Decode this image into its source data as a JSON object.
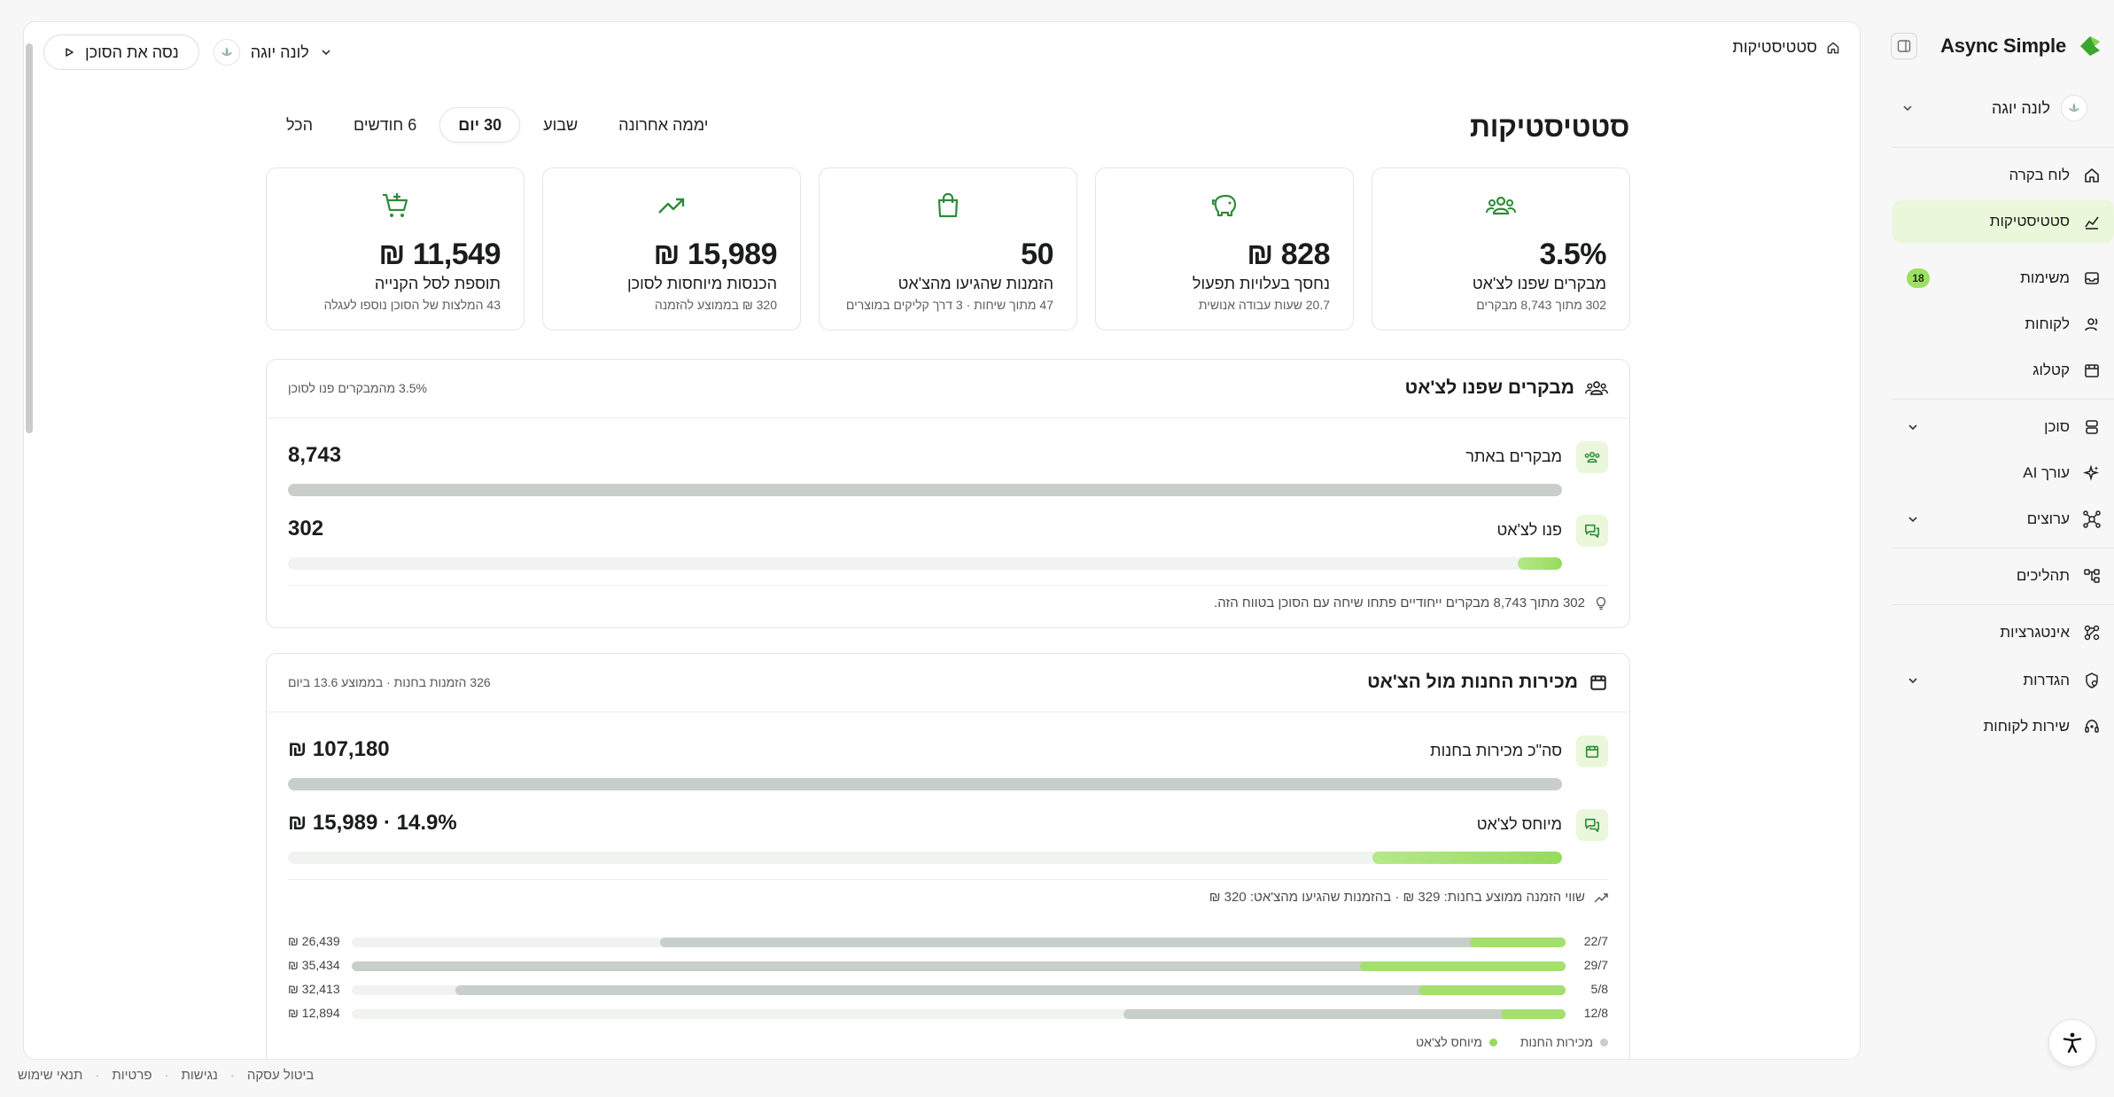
{
  "app": {
    "name": "Async Simple"
  },
  "account": {
    "name": "לונה יוגה"
  },
  "sidebar": {
    "items": [
      {
        "label": "לוח בקרה",
        "icon": "home-icon"
      },
      {
        "label": "סטטיסטיקות",
        "icon": "chart-icon",
        "active": true
      },
      {
        "label": "משימות",
        "icon": "inbox-icon",
        "badge": "18"
      },
      {
        "label": "לקוחות",
        "icon": "users-icon"
      },
      {
        "label": "קטלוג",
        "icon": "store-icon"
      },
      {
        "label": "סוכן",
        "icon": "database-icon",
        "expandable": true
      },
      {
        "label": "עורך AI",
        "icon": "sparkle-icon"
      },
      {
        "label": "ערוצים",
        "icon": "network-icon",
        "expandable": true
      },
      {
        "label": "תהליכים",
        "icon": "workflow-icon"
      },
      {
        "label": "אינטגרציות",
        "icon": "integration-icon"
      },
      {
        "label": "הגדרות",
        "icon": "settings-icon",
        "expandable": true
      },
      {
        "label": "שירות לקוחות",
        "icon": "headset-icon"
      }
    ]
  },
  "topbar": {
    "breadcrumb": "סטטיסטיקות",
    "try_agent": "נסה את הסוכן",
    "org": "לונה יוגה"
  },
  "page": {
    "title": "סטטיסטיקות",
    "periods": [
      "יממה אחרונה",
      "שבוע",
      "30 יום",
      "6 חודשים",
      "הכל"
    ],
    "active_period": "30 יום"
  },
  "stats": [
    {
      "icon": "users-group-icon",
      "value": "3.5%",
      "label": "מבקרים שפנו לצ'אט",
      "sub": "302 מתוך 8,743 מבקרים"
    },
    {
      "icon": "piggy-bank-icon",
      "value": "828 ₪",
      "label": "נחסך בעלויות תפעול",
      "sub": "20.7 שעות עבודה אנושית"
    },
    {
      "icon": "shopping-bag-icon",
      "value": "50",
      "label": "הזמנות שהגיעו מהצ'אט",
      "sub": "47 מתוך שיחות · 3 דרך קליקים במוצרים"
    },
    {
      "icon": "trending-up-icon",
      "value": "15,989 ₪",
      "label": "הכנסות מיוחסות לסוכן",
      "sub": "320 ₪ בממוצע להזמנה"
    },
    {
      "icon": "cart-plus-icon",
      "value": "11,549 ₪",
      "label": "תוספת לסל הקנייה",
      "sub": "43 המלצות של הסוכן נוספו לעגלה"
    }
  ],
  "visitors": {
    "title": "מבקרים שפנו לצ'אט",
    "meta": "3.5% מהמבקרים פנו לסוכן",
    "rows": [
      {
        "label": "מבקרים באתר",
        "value": "8,743",
        "fill": 1.0,
        "color": "grey"
      },
      {
        "label": "פנו לצ'אט",
        "value": "302",
        "fill": 0.035,
        "color": "green"
      }
    ],
    "insight": "302 מתוך 8,743 מבקרים ייחודיים פתחו שיחה עם הסוכן בטווח הזה."
  },
  "sales": {
    "title": "מכירות החנות מול הצ'אט",
    "meta": "326 הזמנות בחנות · בממוצע 13.6 ביום",
    "rows": [
      {
        "label": "סה\"כ מכירות בחנות",
        "value": "107,180 ₪",
        "fill": 1.0,
        "color": "grey"
      },
      {
        "label": "מיוחס לצ'אט",
        "value": "14.9% · 15,989 ₪",
        "fill": 0.149,
        "color": "green"
      }
    ],
    "avg_note": "שווי הזמנה ממוצע בחנות: 329 ₪ · בהזמנות שהגיעו מהצ'אט: 320 ₪",
    "weeks": [
      {
        "label": "22/7",
        "amount": "26,439 ₪",
        "total": 26439,
        "chat": 2800
      },
      {
        "label": "29/7",
        "amount": "35,434 ₪",
        "total": 35434,
        "chat": 6000
      },
      {
        "label": "5/8",
        "amount": "32,413 ₪",
        "total": 32413,
        "chat": 4300
      },
      {
        "label": "12/8",
        "amount": "12,894 ₪",
        "total": 12894,
        "chat": 1900
      }
    ],
    "week_max": 35434,
    "legend": {
      "store": "מכירות החנות",
      "chat": "מיוחס לצ'אט"
    }
  },
  "footer": [
    "תנאי שימוש",
    "פרטיות",
    "נגישות",
    "ביטול עסקה"
  ],
  "colors": {
    "accent": "#96db5c",
    "accent_soft": "#ebf7da",
    "grey_bar": "#c8cec9",
    "brand_green": "#3aa52f"
  }
}
